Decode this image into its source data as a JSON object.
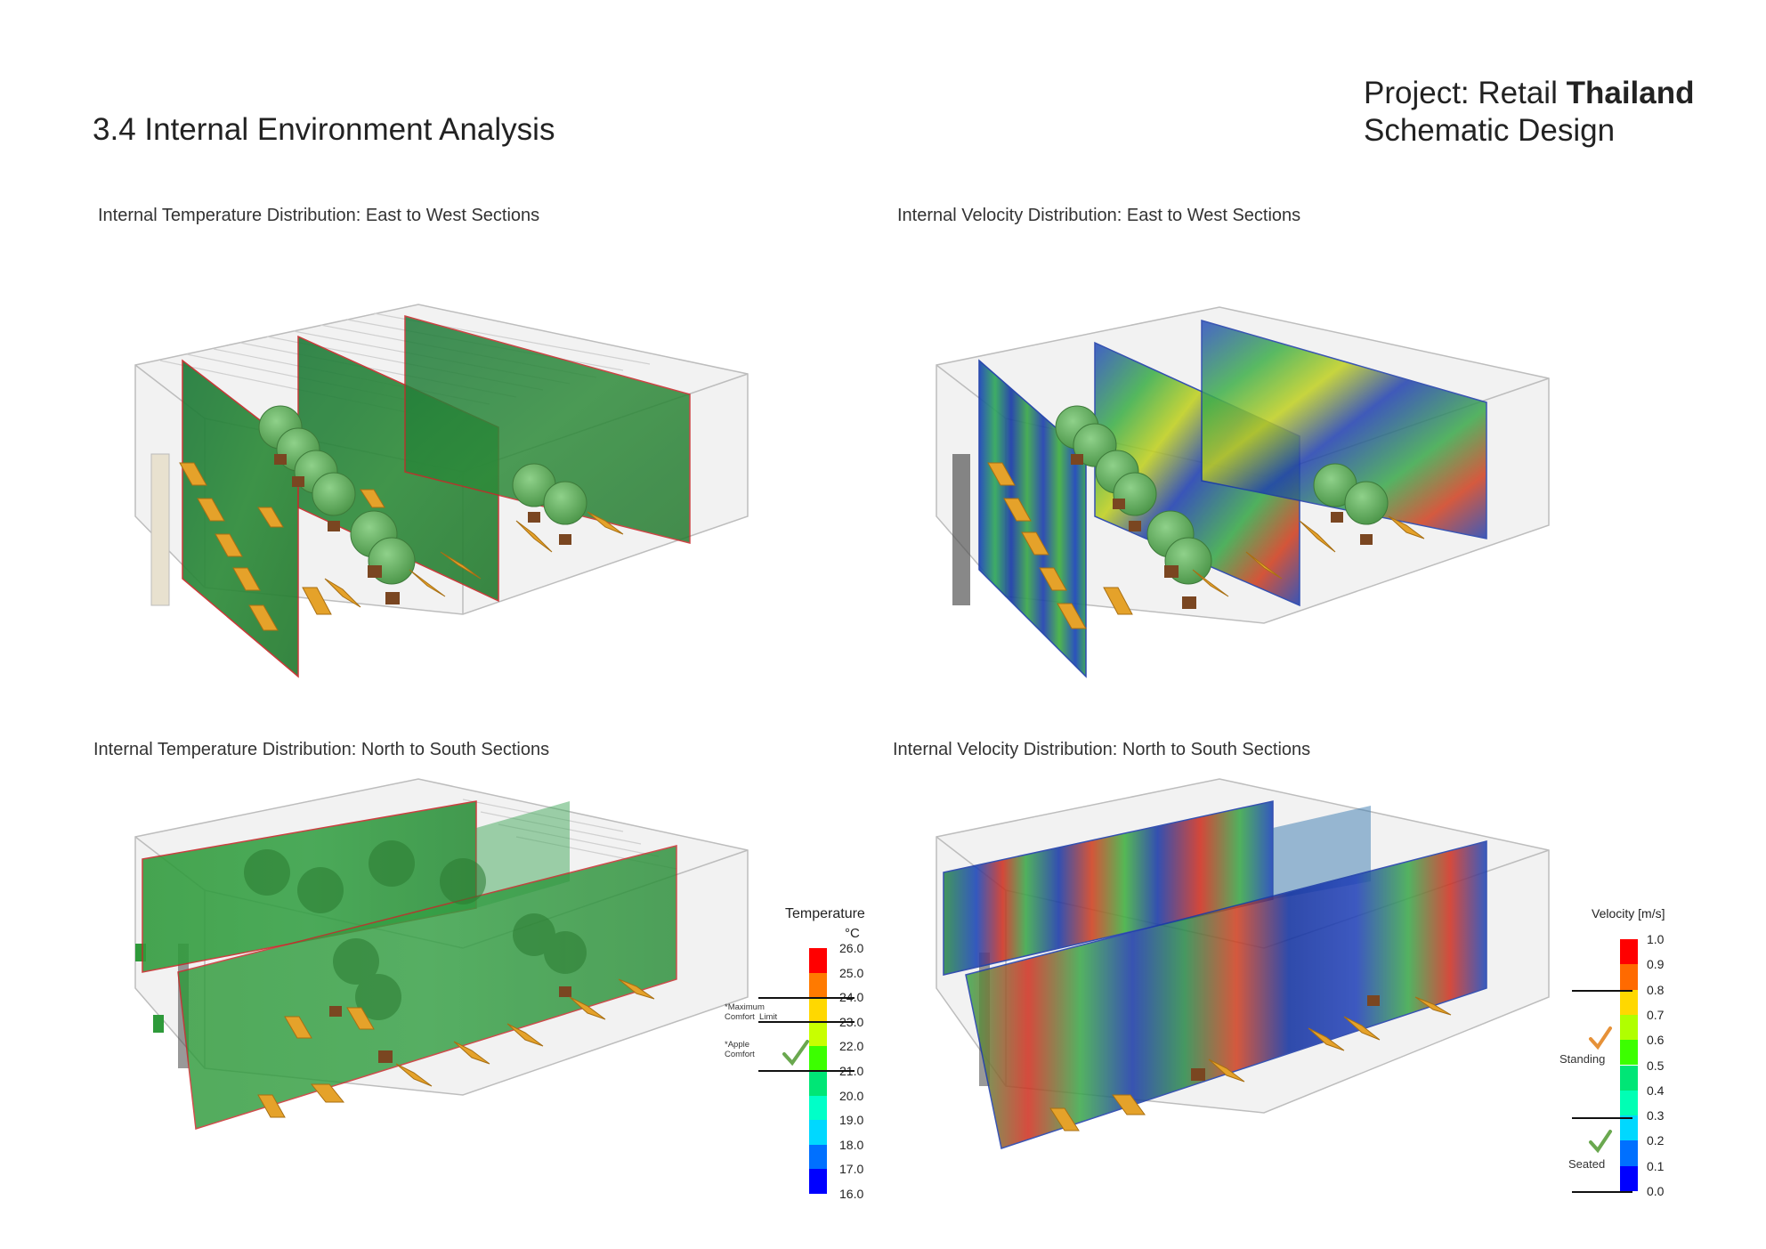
{
  "header": {
    "title": "3.4 Internal Environment Analysis",
    "project_prefix": "Project: Retail ",
    "project_bold": "Thailand",
    "project_phase": "Schematic Design"
  },
  "panels": [
    {
      "caption": "Internal Temperature Distribution: East to West Sections",
      "field": "temperature",
      "orientation": "east-west"
    },
    {
      "caption": "Internal Velocity Distribution: East to West Sections",
      "field": "velocity",
      "orientation": "east-west"
    },
    {
      "caption": "Internal Temperature Distribution: North to South Sections",
      "field": "temperature",
      "orientation": "north-south"
    },
    {
      "caption": "Internal Velocity Distribution: North to South Sections",
      "field": "velocity",
      "orientation": "north-south"
    }
  ],
  "temperature_legend": {
    "title": "Temperature",
    "unit": "°C",
    "ticks": [
      "26.0",
      "25.0",
      "24.0",
      "23.0",
      "22.0",
      "21.0",
      "20.0",
      "19.0",
      "18.0",
      "17.0",
      "16.0"
    ],
    "colors": [
      "#ff0000",
      "#ff7a00",
      "#ffd800",
      "#c8ff00",
      "#3cff00",
      "#00e676",
      "#00ffc8",
      "#00d8ff",
      "#0070ff",
      "#0000ff"
    ],
    "max_comfort_note": "*Maximum\nComfort  Limit",
    "apple_comfort_note": "*Apple\nComfort"
  },
  "velocity_legend": {
    "title": "Velocity [m/s]",
    "ticks": [
      "1.0",
      "0.9",
      "0.8",
      "0.7",
      "0.6",
      "0.5",
      "0.4",
      "0.3",
      "0.2",
      "0.1",
      "0.0"
    ],
    "colors": [
      "#ff0000",
      "#ff6a00",
      "#ffd800",
      "#b0ff00",
      "#3cff00",
      "#00e676",
      "#00ffb4",
      "#00d8ff",
      "#0070ff",
      "#0000ff"
    ],
    "standing_label": "Standing",
    "seated_label": "Seated"
  },
  "colors": {
    "temp_section": "#2e8b3a",
    "section_edge": "#c62828",
    "furniture": "#e5a22a",
    "tree": "#5fa85c",
    "pot": "#7a4621",
    "building_line": "#bdbdbd",
    "check_green": "#6aa84f",
    "check_orange": "#e69138"
  }
}
